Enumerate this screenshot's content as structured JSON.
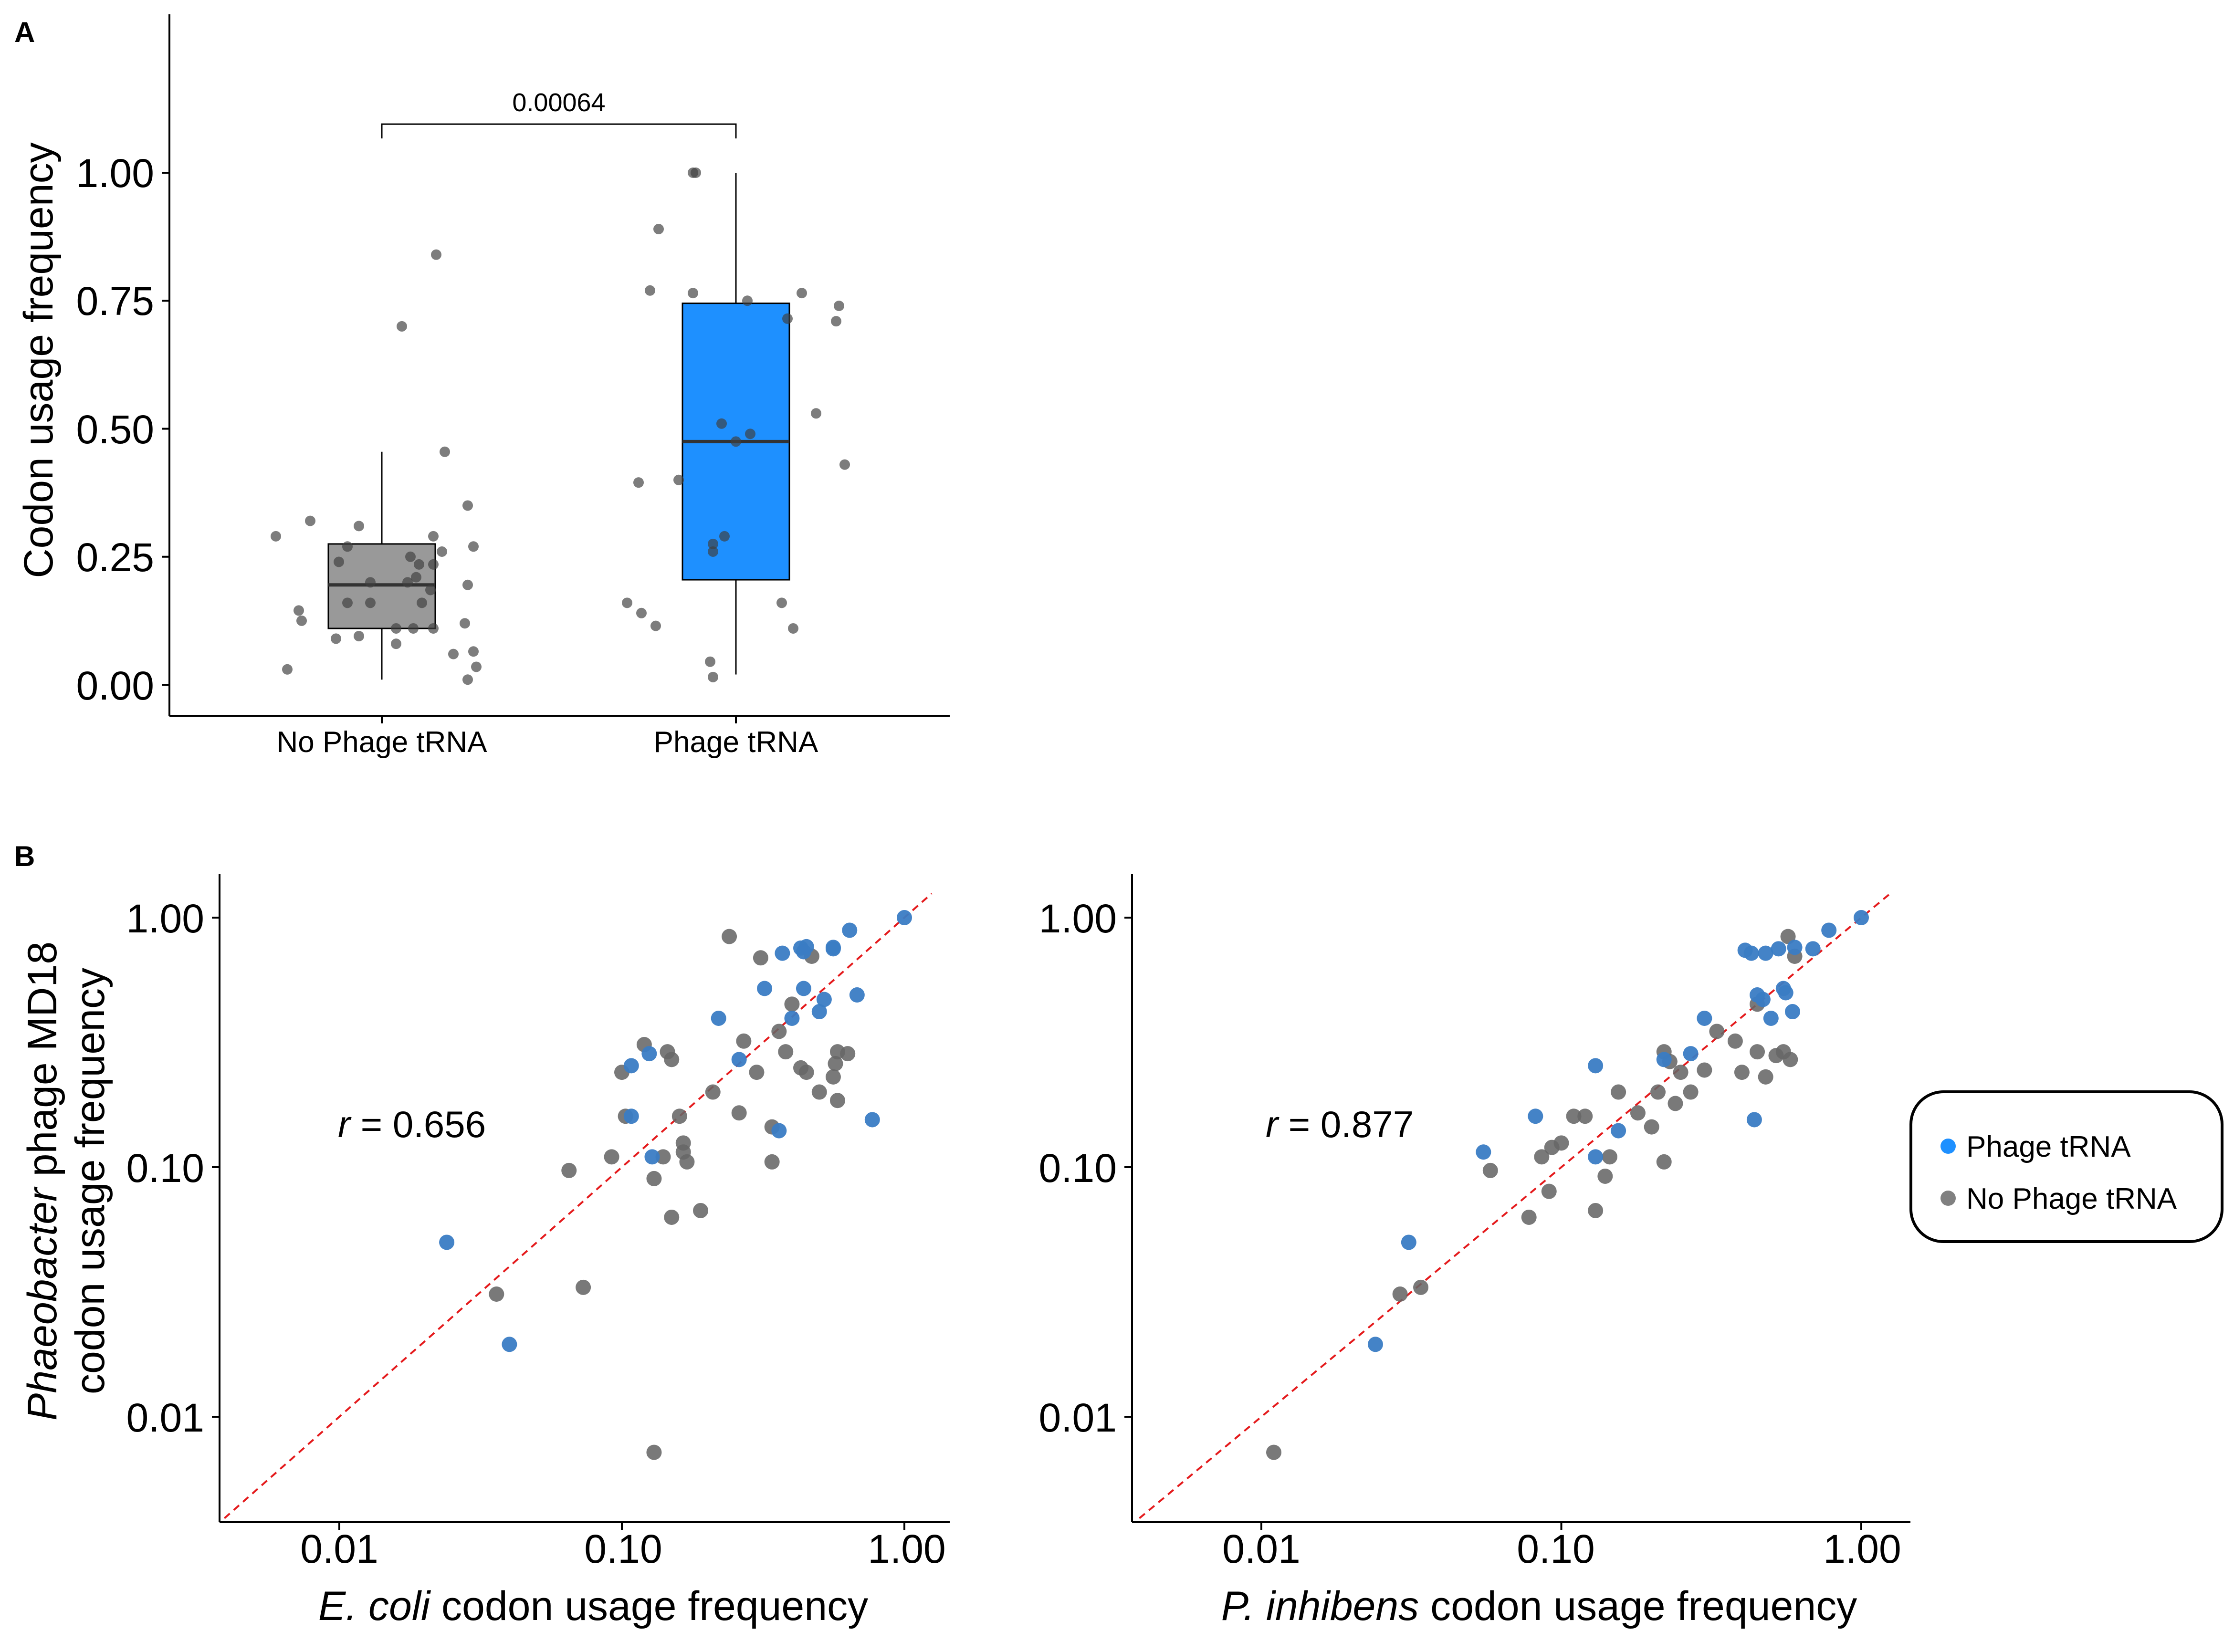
{
  "panel_a": {
    "letter": "A",
    "y_axis_title": "Codon usage frequency",
    "y_ticks": [
      "0.00",
      "0.25",
      "0.50",
      "0.75",
      "1.00"
    ],
    "p_value": "0.00064"
  },
  "panel_b": {
    "letter": "B",
    "y_axis_title_italic": "Phaeobacter",
    "y_axis_title_rest": " phage MD18",
    "y_axis_title_line2": "codon usage frequency",
    "y_ticks": [
      "1.00",
      "0.10",
      "0.01"
    ],
    "x_ticks": [
      "0.01",
      "0.10",
      "1.00"
    ],
    "left": {
      "xlabel_italic": "E. coli",
      "xlabel_rest": " codon usage frequency",
      "r_symbol": "r",
      "r_value": " = 0.656"
    },
    "right": {
      "xlabel_italic": "P. inhibens",
      "xlabel_rest": " codon usage frequency",
      "r_symbol": "r",
      "r_value": " = 0.877"
    }
  },
  "legend": {
    "items": [
      {
        "label": "Phage tRNA",
        "color": "#1E90FF"
      },
      {
        "label": "No Phage tRNA",
        "color": "#808080"
      }
    ]
  },
  "colors": {
    "phage": "#1E90FF",
    "phage_point": "#3A7CC4",
    "no_phage": "#808080",
    "no_phage_box": "#999999",
    "identity_line": "#E41A1C"
  },
  "chart_data": [
    {
      "type": "box",
      "ylim": [
        -0.06,
        1.25
      ],
      "categories": [
        "No Phage tRNA",
        "Phage tRNA"
      ],
      "boxes": [
        {
          "category": "No Phage tRNA",
          "q1": 0.11,
          "median": 0.195,
          "q3": 0.275,
          "whisker_low": 0.01,
          "whisker_high": 0.455
        },
        {
          "category": "Phage tRNA",
          "q1": 0.205,
          "median": 0.475,
          "q3": 0.745,
          "whisker_low": 0.02,
          "whisker_high": 1.0
        }
      ],
      "comparison": {
        "groups": [
          "No Phage tRNA",
          "Phage tRNA"
        ],
        "p_value": "0.00064",
        "y": 1.095
      },
      "points": [
        {
          "g": 0,
          "j": -0.37,
          "y": 0.29
        },
        {
          "g": 0,
          "j": -0.33,
          "y": 0.03
        },
        {
          "g": 0,
          "j": -0.29,
          "y": 0.145
        },
        {
          "g": 0,
          "j": -0.28,
          "y": 0.125
        },
        {
          "g": 0,
          "j": -0.25,
          "y": 0.32
        },
        {
          "g": 0,
          "j": -0.16,
          "y": 0.09
        },
        {
          "g": 0,
          "j": -0.15,
          "y": 0.24
        },
        {
          "g": 0,
          "j": -0.12,
          "y": 0.16
        },
        {
          "g": 0,
          "j": -0.12,
          "y": 0.27
        },
        {
          "g": 0,
          "j": -0.08,
          "y": 0.31
        },
        {
          "g": 0,
          "j": -0.08,
          "y": 0.095
        },
        {
          "g": 0,
          "j": -0.04,
          "y": 0.2
        },
        {
          "g": 0,
          "j": -0.04,
          "y": 0.16
        },
        {
          "g": 0,
          "j": 0.05,
          "y": 0.08
        },
        {
          "g": 0,
          "j": 0.05,
          "y": 0.11
        },
        {
          "g": 0,
          "j": 0.07,
          "y": 0.7
        },
        {
          "g": 0,
          "j": 0.09,
          "y": 0.2
        },
        {
          "g": 0,
          "j": 0.1,
          "y": 0.25
        },
        {
          "g": 0,
          "j": 0.11,
          "y": 0.11
        },
        {
          "g": 0,
          "j": 0.12,
          "y": 0.21
        },
        {
          "g": 0,
          "j": 0.13,
          "y": 0.235
        },
        {
          "g": 0,
          "j": 0.14,
          "y": 0.16
        },
        {
          "g": 0,
          "j": 0.17,
          "y": 0.185
        },
        {
          "g": 0,
          "j": 0.18,
          "y": 0.29
        },
        {
          "g": 0,
          "j": 0.18,
          "y": 0.11
        },
        {
          "g": 0,
          "j": 0.18,
          "y": 0.235
        },
        {
          "g": 0,
          "j": 0.19,
          "y": 0.84
        },
        {
          "g": 0,
          "j": 0.21,
          "y": 0.26
        },
        {
          "g": 0,
          "j": 0.22,
          "y": 0.455
        },
        {
          "g": 0,
          "j": 0.25,
          "y": 0.06
        },
        {
          "g": 0,
          "j": 0.29,
          "y": 0.12
        },
        {
          "g": 0,
          "j": 0.3,
          "y": 0.195
        },
        {
          "g": 0,
          "j": 0.3,
          "y": 0.35
        },
        {
          "g": 0,
          "j": 0.3,
          "y": 0.01
        },
        {
          "g": 0,
          "j": 0.32,
          "y": 0.27
        },
        {
          "g": 0,
          "j": 0.32,
          "y": 0.065
        },
        {
          "g": 0,
          "j": 0.33,
          "y": 0.035
        },
        {
          "g": 1,
          "j": -0.38,
          "y": 0.16
        },
        {
          "g": 1,
          "j": -0.34,
          "y": 0.395
        },
        {
          "g": 1,
          "j": -0.33,
          "y": 0.14
        },
        {
          "g": 1,
          "j": -0.3,
          "y": 0.77
        },
        {
          "g": 1,
          "j": -0.28,
          "y": 0.115
        },
        {
          "g": 1,
          "j": -0.27,
          "y": 0.89
        },
        {
          "g": 1,
          "j": -0.2,
          "y": 0.4
        },
        {
          "g": 1,
          "j": -0.15,
          "y": 1.0
        },
        {
          "g": 1,
          "j": -0.14,
          "y": 1.0
        },
        {
          "g": 1,
          "j": -0.15,
          "y": 0.765
        },
        {
          "g": 1,
          "j": -0.09,
          "y": 0.045
        },
        {
          "g": 1,
          "j": -0.08,
          "y": 0.26
        },
        {
          "g": 1,
          "j": -0.08,
          "y": 0.275
        },
        {
          "g": 1,
          "j": -0.08,
          "y": 0.015
        },
        {
          "g": 1,
          "j": -0.05,
          "y": 0.51
        },
        {
          "g": 1,
          "j": -0.04,
          "y": 0.29
        },
        {
          "g": 1,
          "j": 0.0,
          "y": 0.475
        },
        {
          "g": 1,
          "j": 0.04,
          "y": 0.75
        },
        {
          "g": 1,
          "j": 0.05,
          "y": 0.49
        },
        {
          "g": 1,
          "j": 0.16,
          "y": 0.16
        },
        {
          "g": 1,
          "j": 0.18,
          "y": 0.715
        },
        {
          "g": 1,
          "j": 0.2,
          "y": 0.11
        },
        {
          "g": 1,
          "j": 0.23,
          "y": 0.765
        },
        {
          "g": 1,
          "j": 0.28,
          "y": 0.53
        },
        {
          "g": 1,
          "j": 0.35,
          "y": 0.71
        },
        {
          "g": 1,
          "j": 0.36,
          "y": 0.74
        },
        {
          "g": 1,
          "j": 0.38,
          "y": 0.43
        }
      ]
    },
    {
      "type": "scatter",
      "xscale": "log",
      "yscale": "log",
      "xlim": [
        0.004,
        1.1
      ],
      "ylim": [
        0.0038,
        1.4
      ],
      "r": 0.656,
      "identity_line": true,
      "phage": [
        [
          0.024,
          0.05
        ],
        [
          0.04,
          0.0195
        ],
        [
          0.108,
          0.255
        ],
        [
          0.108,
          0.16
        ],
        [
          0.125,
          0.285
        ],
        [
          0.128,
          0.11
        ],
        [
          0.22,
          0.395
        ],
        [
          0.26,
          0.27
        ],
        [
          0.32,
          0.52
        ],
        [
          0.36,
          0.14
        ],
        [
          0.37,
          0.72
        ],
        [
          0.4,
          0.395
        ],
        [
          0.43,
          0.755
        ],
        [
          0.44,
          0.73
        ],
        [
          0.44,
          0.52
        ],
        [
          0.45,
          0.765
        ],
        [
          0.5,
          0.42
        ],
        [
          0.52,
          0.47
        ],
        [
          0.56,
          0.75
        ],
        [
          0.56,
          0.76
        ],
        [
          0.64,
          0.89
        ],
        [
          0.68,
          0.49
        ],
        [
          0.77,
          0.155
        ],
        [
          1.0,
          1.0
        ]
      ],
      "no_phage": [
        [
          0.036,
          0.031
        ],
        [
          0.065,
          0.097
        ],
        [
          0.073,
          0.033
        ],
        [
          0.092,
          0.11
        ],
        [
          0.1,
          0.24
        ],
        [
          0.103,
          0.16
        ],
        [
          0.12,
          0.31
        ],
        [
          0.13,
          0.0072
        ],
        [
          0.13,
          0.09
        ],
        [
          0.14,
          0.11
        ],
        [
          0.145,
          0.29
        ],
        [
          0.15,
          0.27
        ],
        [
          0.15,
          0.063
        ],
        [
          0.16,
          0.16
        ],
        [
          0.165,
          0.125
        ],
        [
          0.165,
          0.115
        ],
        [
          0.17,
          0.105
        ],
        [
          0.19,
          0.067
        ],
        [
          0.21,
          0.2
        ],
        [
          0.24,
          0.84
        ],
        [
          0.26,
          0.165
        ],
        [
          0.27,
          0.32
        ],
        [
          0.3,
          0.24
        ],
        [
          0.31,
          0.69
        ],
        [
          0.34,
          0.105
        ],
        [
          0.34,
          0.145
        ],
        [
          0.36,
          0.35
        ],
        [
          0.38,
          0.29
        ],
        [
          0.4,
          0.45
        ],
        [
          0.43,
          0.25
        ],
        [
          0.45,
          0.24
        ],
        [
          0.47,
          0.7
        ],
        [
          0.5,
          0.2
        ],
        [
          0.56,
          0.23
        ],
        [
          0.57,
          0.26
        ],
        [
          0.58,
          0.29
        ],
        [
          0.58,
          0.185
        ],
        [
          0.63,
          0.285
        ]
      ]
    },
    {
      "type": "scatter",
      "xscale": "log",
      "yscale": "log",
      "xlim": [
        0.004,
        1.1
      ],
      "ylim": [
        0.0038,
        1.4
      ],
      "r": 0.877,
      "identity_line": true,
      "phage": [
        [
          0.024,
          0.0195
        ],
        [
          0.031,
          0.05
        ],
        [
          0.055,
          0.115
        ],
        [
          0.082,
          0.16
        ],
        [
          0.13,
          0.11
        ],
        [
          0.13,
          0.255
        ],
        [
          0.155,
          0.14
        ],
        [
          0.22,
          0.27
        ],
        [
          0.27,
          0.285
        ],
        [
          0.3,
          0.395
        ],
        [
          0.41,
          0.74
        ],
        [
          0.43,
          0.72
        ],
        [
          0.44,
          0.155
        ],
        [
          0.45,
          0.49
        ],
        [
          0.47,
          0.47
        ],
        [
          0.48,
          0.72
        ],
        [
          0.5,
          0.395
        ],
        [
          0.53,
          0.75
        ],
        [
          0.55,
          0.52
        ],
        [
          0.56,
          0.5
        ],
        [
          0.59,
          0.42
        ],
        [
          0.6,
          0.76
        ],
        [
          0.69,
          0.75
        ],
        [
          0.78,
          0.89
        ],
        [
          1.0,
          1.0
        ]
      ],
      "no_phage": [
        [
          0.011,
          0.0072
        ],
        [
          0.029,
          0.031
        ],
        [
          0.034,
          0.033
        ],
        [
          0.058,
          0.097
        ],
        [
          0.078,
          0.063
        ],
        [
          0.086,
          0.11
        ],
        [
          0.091,
          0.08
        ],
        [
          0.093,
          0.12
        ],
        [
          0.1,
          0.125
        ],
        [
          0.11,
          0.16
        ],
        [
          0.12,
          0.16
        ],
        [
          0.13,
          0.067
        ],
        [
          0.14,
          0.092
        ],
        [
          0.145,
          0.11
        ],
        [
          0.155,
          0.2
        ],
        [
          0.18,
          0.165
        ],
        [
          0.2,
          0.145
        ],
        [
          0.21,
          0.2
        ],
        [
          0.22,
          0.29
        ],
        [
          0.22,
          0.105
        ],
        [
          0.23,
          0.265
        ],
        [
          0.24,
          0.18
        ],
        [
          0.25,
          0.24
        ],
        [
          0.27,
          0.2
        ],
        [
          0.3,
          0.245
        ],
        [
          0.33,
          0.35
        ],
        [
          0.38,
          0.32
        ],
        [
          0.4,
          0.24
        ],
        [
          0.45,
          0.45
        ],
        [
          0.45,
          0.29
        ],
        [
          0.48,
          0.23
        ],
        [
          0.52,
          0.28
        ],
        [
          0.55,
          0.29
        ],
        [
          0.57,
          0.84
        ],
        [
          0.58,
          0.27
        ],
        [
          0.6,
          0.7
        ]
      ]
    }
  ]
}
